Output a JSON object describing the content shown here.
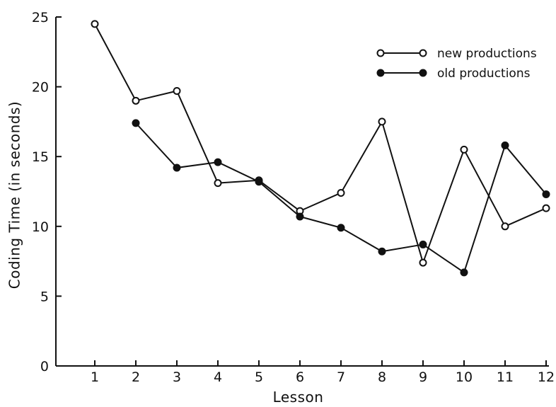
{
  "chart_data": {
    "type": "line",
    "xlabel": "Lesson",
    "ylabel": "Coding Time (in seconds)",
    "x": [
      1,
      2,
      3,
      4,
      5,
      6,
      7,
      8,
      9,
      10,
      11,
      12
    ],
    "x_tick_labels": [
      "1",
      "2",
      "3",
      "4",
      "5",
      "6",
      "7",
      "8",
      "9",
      "10",
      "11",
      "12"
    ],
    "ylim": [
      0,
      25
    ],
    "y_ticks": [
      0,
      5,
      10,
      15,
      20,
      25
    ],
    "y_tick_labels": [
      "0",
      "5",
      "10",
      "15",
      "20",
      "25"
    ],
    "grid": false,
    "legend_position": "top-right",
    "series": [
      {
        "name": "new productions",
        "marker": "open-circle",
        "values": [
          24.5,
          19.0,
          19.7,
          13.1,
          13.3,
          11.1,
          12.4,
          17.5,
          7.4,
          15.5,
          10.0,
          11.3
        ]
      },
      {
        "name": "old productions",
        "marker": "filled-circle",
        "values": [
          null,
          17.4,
          14.2,
          14.6,
          13.2,
          10.7,
          9.9,
          8.2,
          8.7,
          6.7,
          15.8,
          12.3
        ]
      }
    ]
  }
}
